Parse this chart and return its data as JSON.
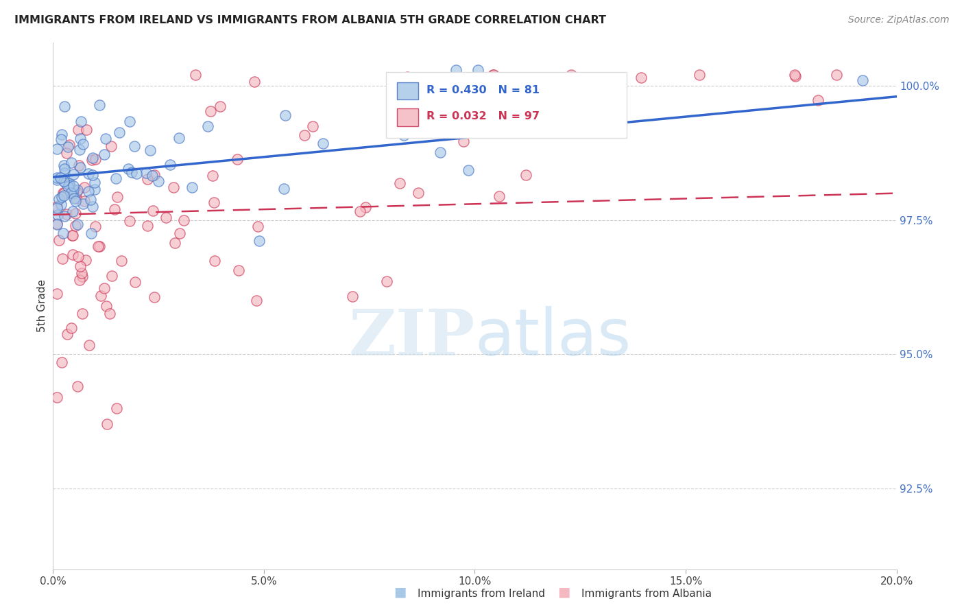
{
  "title": "IMMIGRANTS FROM IRELAND VS IMMIGRANTS FROM ALBANIA 5TH GRADE CORRELATION CHART",
  "source": "Source: ZipAtlas.com",
  "ylabel": "5th Grade",
  "xmin": 0.0,
  "xmax": 0.2,
  "ymin": 0.91,
  "ymax": 1.008,
  "yticks": [
    0.925,
    0.95,
    0.975,
    1.0
  ],
  "ytick_labels": [
    "92.5%",
    "95.0%",
    "97.5%",
    "100.0%"
  ],
  "xticks": [
    0.0,
    0.05,
    0.1,
    0.15,
    0.2
  ],
  "xtick_labels": [
    "0.0%",
    "5.0%",
    "10.0%",
    "15.0%",
    "20.0%"
  ],
  "legend_line1": "R = 0.430   N = 81",
  "legend_line2": "R = 0.032   N = 97",
  "ireland_color_fill": "#a8c8e8",
  "ireland_color_edge": "#4472c4",
  "albania_color_fill": "#f4b8c1",
  "albania_color_edge": "#cc3355",
  "trend_ireland_color": "#3366cc",
  "trend_albania_color": "#cc3355",
  "watermark_zip": "ZIP",
  "watermark_atlas": "atlas",
  "grid_color": "#cccccc",
  "right_tick_color": "#4472c4",
  "title_color": "#222222",
  "source_color": "#888888"
}
